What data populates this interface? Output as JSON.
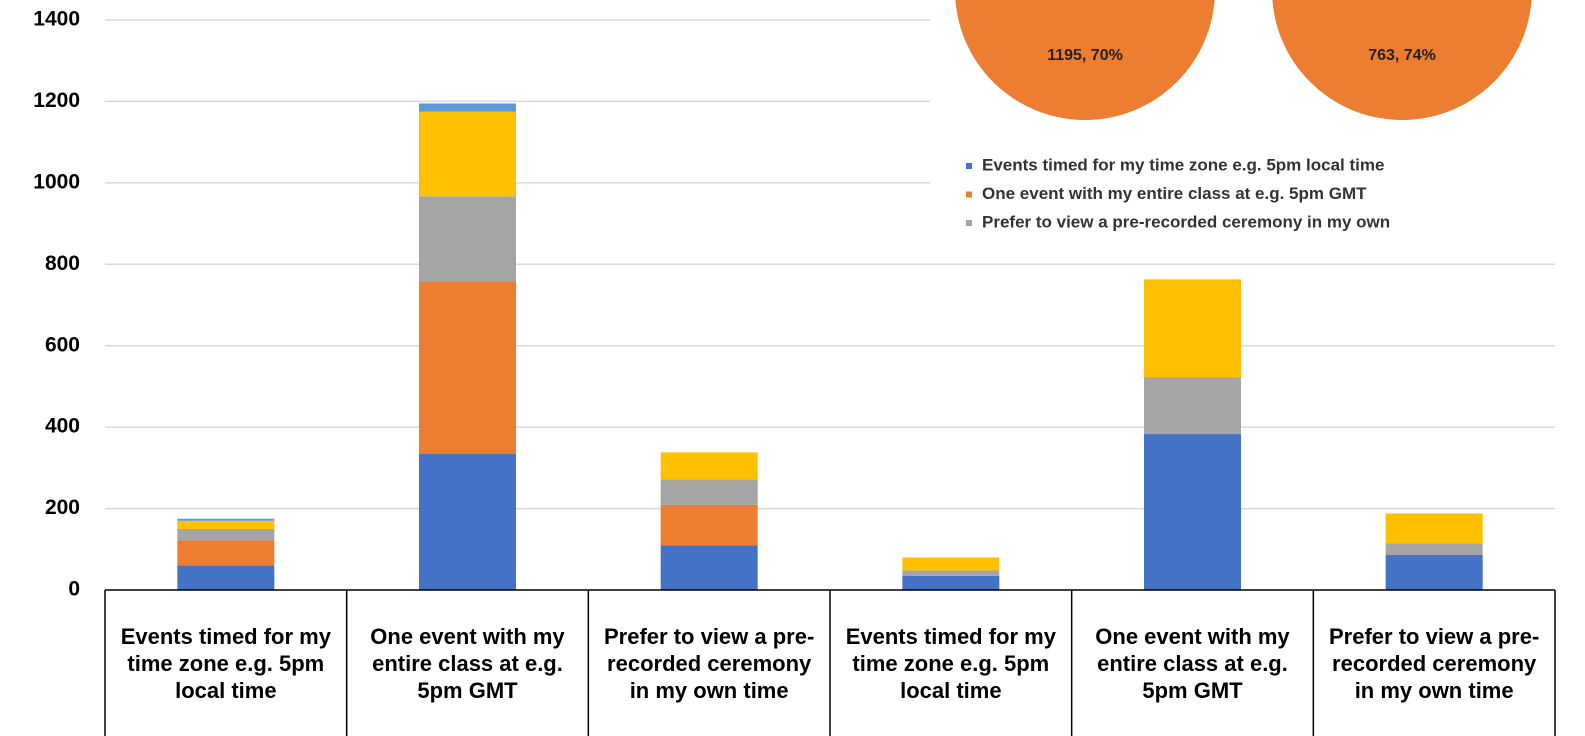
{
  "chart_data": [
    {
      "type": "bar",
      "stacked": true,
      "categories": [
        "Events timed for my time zone e.g. 5pm local time",
        "One event with my entire class at e.g. 5pm GMT",
        "Prefer to view a pre-recorded ceremony in my own time",
        "Events timed for my time zone e.g. 5pm local time",
        "One event with my entire class at e.g. 5pm GMT",
        "Prefer to view a pre-recorded ceremony in my own time"
      ],
      "series": [
        {
          "color": "#4472c4",
          "values": [
            60,
            334,
            110,
            35,
            383,
            86
          ]
        },
        {
          "color": "#ed7d31",
          "values": [
            62,
            424,
            99,
            0,
            0,
            0
          ]
        },
        {
          "color": "#a5a5a5",
          "values": [
            28,
            209,
            63,
            13,
            140,
            29
          ]
        },
        {
          "color": "#ffc000",
          "values": [
            20,
            208,
            66,
            32,
            240,
            73
          ]
        },
        {
          "color": "#5b9bd5",
          "values": [
            5,
            20,
            0,
            0,
            0,
            0
          ]
        }
      ],
      "ylim": [
        0,
        1400
      ],
      "yticks": [
        0,
        200,
        400,
        600,
        800,
        1000,
        1200,
        1400
      ],
      "grid": true
    },
    {
      "type": "pie",
      "values": [
        1195,
        763
      ],
      "percents": [
        70,
        74
      ],
      "value_labels": [
        "1195, 70%",
        "763, 74%"
      ],
      "color": "#ed7d31",
      "legend": [
        "Events timed for my time zone e.g. 5pm local time",
        "One event with my entire class at e.g. 5pm GMT",
        "Prefer to view a pre-recorded ceremony in my own"
      ],
      "legend_colors": [
        "#4472c4",
        "#ed7d31",
        "#a5a5a5"
      ]
    }
  ]
}
